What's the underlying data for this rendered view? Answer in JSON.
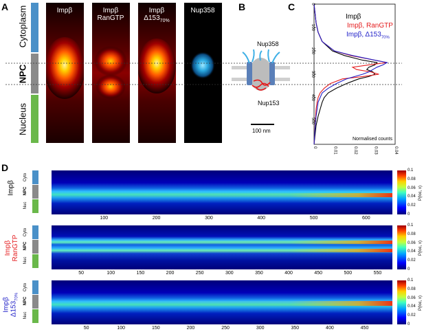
{
  "panel_labels": {
    "a": "A",
    "b": "B",
    "c": "C",
    "d": "D"
  },
  "regions": {
    "cytoplasm": "Cytoplasm",
    "npc": "NPC",
    "nucleus": "Nucleus"
  },
  "colors": {
    "cyto": "#4a90c8",
    "npc": "#8a8a8a",
    "nuc": "#6ab84a",
    "red": "#e41a1c",
    "blue": "#1f1fc8"
  },
  "panelA": {
    "images": [
      {
        "title1": "Impβ",
        "title2": "",
        "title2sub": ""
      },
      {
        "title1": "Impβ",
        "title2": "RanGTP",
        "title2sub": ""
      },
      {
        "title1": "Impβ",
        "title2": "Δ153",
        "title2sub": "70%"
      },
      {
        "title1": "Nup358",
        "title2": "",
        "title2sub": ""
      }
    ]
  },
  "panelB": {
    "top_label": "Nup358",
    "bottom_label": "Nup153",
    "scale_label": "100 nm"
  },
  "panelC": {
    "legend": [
      {
        "text": "Impβ",
        "sub": "",
        "color": "#000000"
      },
      {
        "text": "Impβ, RanGTP",
        "sub": "",
        "color": "#e41a1c"
      },
      {
        "text": "Impβ, Δ153",
        "sub": "70%",
        "color": "#1f1fc8"
      }
    ],
    "xlabel": "Normalised counts",
    "xticks": [
      "0",
      "0.01",
      "0.02",
      "0.03",
      "0.04"
    ],
    "yticks": [
      "0",
      "100",
      "200",
      "300",
      "400",
      "500"
    ]
  },
  "chart_data": {
    "type": "line",
    "xlabel": "Normalised counts",
    "xlim": [
      0,
      0.04
    ],
    "ylim": [
      0,
      600
    ],
    "series": [
      {
        "name": "Impβ",
        "color": "#000000",
        "y": [
          0,
          40,
          80,
          120,
          160,
          200,
          220,
          240,
          250,
          260,
          270,
          280,
          290,
          300,
          310,
          320,
          340,
          360,
          380,
          400,
          420,
          450,
          480,
          520,
          560,
          600
        ],
        "x": [
          0.0,
          0.0005,
          0.001,
          0.002,
          0.004,
          0.009,
          0.015,
          0.024,
          0.031,
          0.03,
          0.027,
          0.026,
          0.029,
          0.03,
          0.027,
          0.022,
          0.016,
          0.011,
          0.007,
          0.005,
          0.004,
          0.003,
          0.002,
          0.001,
          0.0005,
          0.0
        ]
      },
      {
        "name": "Impβ, RanGTP",
        "color": "#e41a1c",
        "y": [
          0,
          40,
          80,
          120,
          160,
          200,
          220,
          240,
          250,
          260,
          270,
          280,
          290,
          300,
          310,
          320,
          340,
          360,
          380,
          400,
          420,
          450,
          480,
          520,
          560,
          600
        ],
        "x": [
          0.0,
          0.0005,
          0.001,
          0.002,
          0.004,
          0.01,
          0.018,
          0.03,
          0.036,
          0.027,
          0.019,
          0.021,
          0.028,
          0.032,
          0.024,
          0.014,
          0.008,
          0.005,
          0.003,
          0.002,
          0.0015,
          0.001,
          0.0008,
          0.0005,
          0.0003,
          0.0
        ]
      },
      {
        "name": "Impβ, Δ153 70%",
        "color": "#1f1fc8",
        "y": [
          0,
          40,
          80,
          120,
          160,
          200,
          220,
          240,
          250,
          260,
          270,
          280,
          290,
          300,
          310,
          320,
          340,
          360,
          380,
          400,
          420,
          450,
          480,
          520,
          560,
          600
        ],
        "x": [
          0.0,
          0.0005,
          0.001,
          0.002,
          0.004,
          0.01,
          0.019,
          0.03,
          0.036,
          0.034,
          0.031,
          0.029,
          0.027,
          0.024,
          0.02,
          0.016,
          0.011,
          0.007,
          0.004,
          0.003,
          0.002,
          0.0015,
          0.001,
          0.0006,
          0.0003,
          0.0
        ]
      }
    ]
  },
  "panelD": {
    "colorbar_ticks": [
      "0",
      "0.02",
      "0.04",
      "0.06",
      "0.08",
      "0.1"
    ],
    "colorbar_label": "P(loc, x)",
    "small_regions": {
      "cyto": "Cyto",
      "npc": "NPC",
      "nuc": "Nuc"
    },
    "rows": [
      {
        "label1": "Impβ",
        "label2": "",
        "label2sub": "",
        "color": "#000000",
        "xticks": [
          "100",
          "200",
          "300",
          "400",
          "500",
          "600"
        ],
        "xmax": 650
      },
      {
        "label1": "Impβ",
        "label2": "RanGTP",
        "label2sub": "",
        "color": "#e41a1c",
        "xticks": [
          "50",
          "100",
          "150",
          "200",
          "250",
          "300",
          "350",
          "400",
          "450",
          "500",
          "550"
        ],
        "xmax": 575
      },
      {
        "label1": "Impβ",
        "label2": "Δ153",
        "label2sub": "70%",
        "color": "#1f1fc8",
        "xticks": [
          "50",
          "100",
          "150",
          "200",
          "250",
          "300",
          "350",
          "400",
          "450"
        ],
        "xmax": 490
      }
    ]
  }
}
